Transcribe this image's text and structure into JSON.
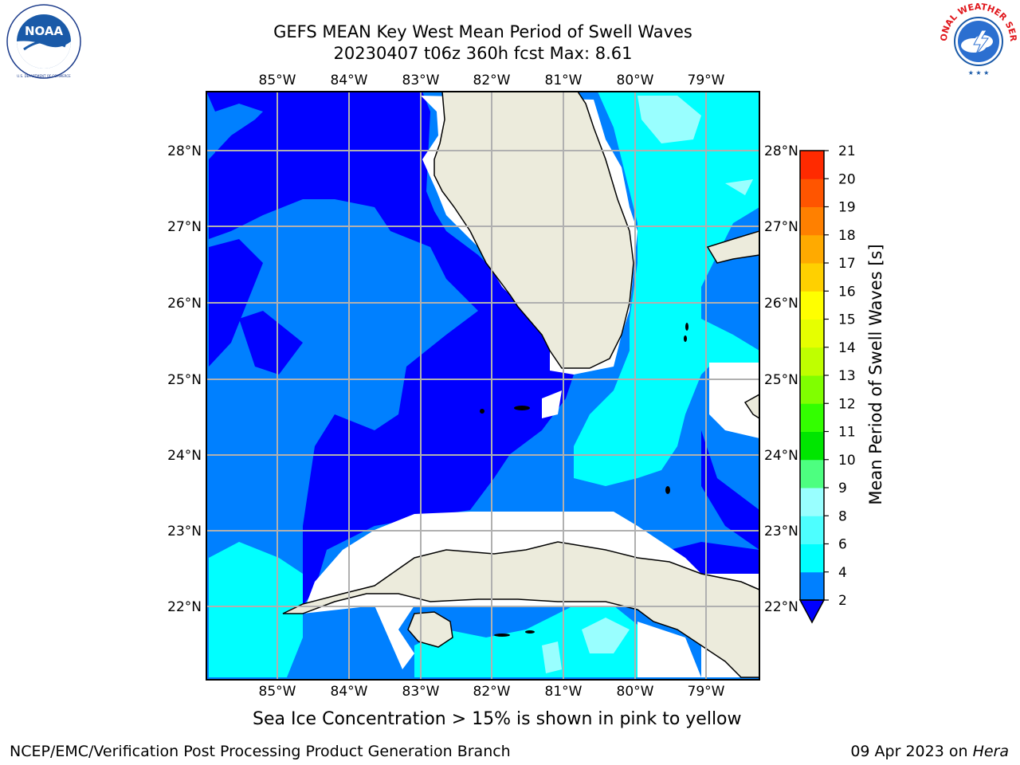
{
  "header": {
    "title_line1": "GEFS MEAN Key West Mean Period of Swell Waves",
    "title_line2": "20230407 t06z 360h fcst   Max: 8.61"
  },
  "logos": {
    "left": {
      "name": "NOAA",
      "ring_text": "NATIONAL OCEANIC AND ATMOSPHERIC ADMINISTRATION · U.S. DEPARTMENT OF COMMERCE"
    },
    "right": {
      "name": "NATIONAL WEATHER SERVICE"
    }
  },
  "map": {
    "lon_labels": [
      "85°W",
      "84°W",
      "83°W",
      "82°W",
      "81°W",
      "80°W",
      "79°W"
    ],
    "lat_labels": [
      "28°N",
      "27°N",
      "26°N",
      "25°N",
      "24°N",
      "23°N",
      "22°N"
    ]
  },
  "colorbar": {
    "label": "Mean Period of Swell Waves [s]",
    "ticks": [
      "2",
      "4",
      "6",
      "8",
      "9",
      "10",
      "11",
      "12",
      "13",
      "14",
      "15",
      "16",
      "17",
      "18",
      "19",
      "20",
      "21"
    ],
    "colors": [
      "#0000ff",
      "#0080ff",
      "#00ffff",
      "#4dffff",
      "#99ffff",
      "#4dff80",
      "#00e600",
      "#33ff00",
      "#80ff00",
      "#bfff00",
      "#e6ff00",
      "#ffff00",
      "#ffd000",
      "#ffaa00",
      "#ff8000",
      "#ff5500",
      "#ff2a00",
      "#ff0000"
    ]
  },
  "footer": {
    "note": "Sea Ice Concentration > 15% is shown in pink to yellow",
    "credit": "NCEP/EMC/Verification Post Processing Product Generation Branch",
    "date": "09 Apr 2023 on ",
    "host": "Hera"
  }
}
